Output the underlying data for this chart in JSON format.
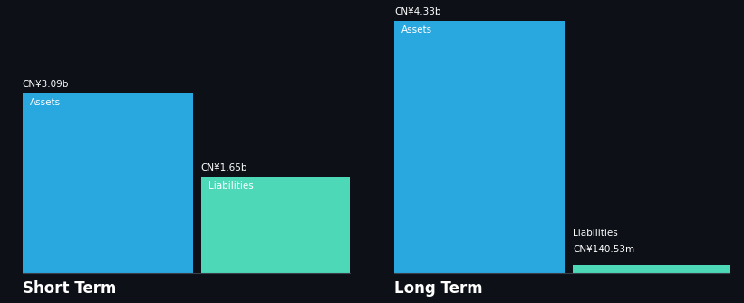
{
  "background_color": "#0d1117",
  "short_term": {
    "label": "Short Term",
    "assets_value": 3.09,
    "assets_label": "Assets",
    "assets_value_text": "CN¥3.09b",
    "assets_color": "#29a8e0",
    "liabilities_value": 1.65,
    "liabilities_label": "Liabilities",
    "liabilities_value_text": "CN¥1.65b",
    "liabilities_color": "#4dd9b8"
  },
  "long_term": {
    "label": "Long Term",
    "assets_value": 4.33,
    "assets_label": "Assets",
    "assets_value_text": "CN¥4.33b",
    "assets_color": "#29a8e0",
    "liabilities_value": 0.14053,
    "liabilities_label": "Liabilities",
    "liabilities_value_text": "CN¥140.53m",
    "liabilities_color": "#4dd9b8"
  },
  "text_color": "#ffffff",
  "label_fontsize": 7.5,
  "section_label_fontsize": 12,
  "value_fontsize": 7.5,
  "baseline_color": "#3a3f4a"
}
